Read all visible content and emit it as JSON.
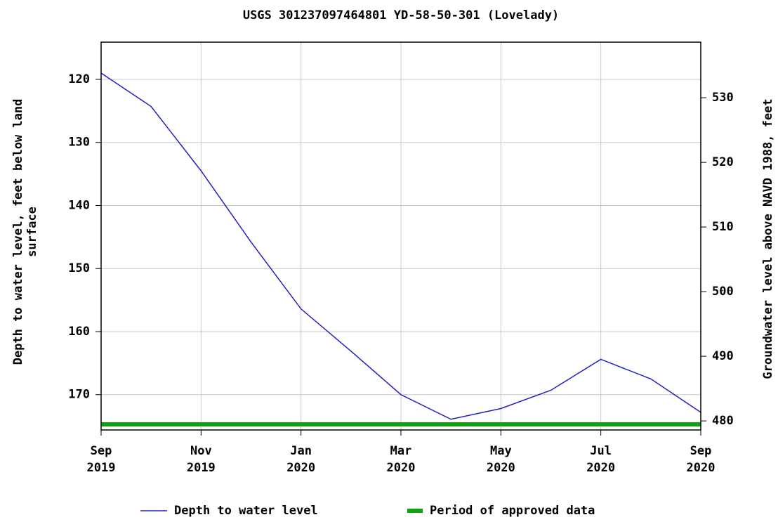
{
  "chart_data": {
    "type": "line",
    "title": "USGS 301237097464801 YD-58-50-301 (Lovelady)",
    "y_label": "Depth to water level, feet below land surface",
    "y2_label": "Groundwater level above NAVD 1988, feet",
    "x": [
      "2019-09",
      "2019-10",
      "2019-11",
      "2019-12",
      "2020-01",
      "2020-02",
      "2020-03",
      "2020-04",
      "2020-05",
      "2020-06",
      "2020-07",
      "2020-08",
      "2020-09"
    ],
    "xlim": [
      "2019-09",
      "2020-09"
    ],
    "xticks": [
      {
        "value": "2019-09",
        "label": "Sep 2019"
      },
      {
        "value": "2019-11",
        "label": "Nov 2019"
      },
      {
        "value": "2020-01",
        "label": "Jan 2020"
      },
      {
        "value": "2020-03",
        "label": "Mar 2020"
      },
      {
        "value": "2020-05",
        "label": "May 2020"
      },
      {
        "value": "2020-07",
        "label": "Jul 2020"
      },
      {
        "value": "2020-09",
        "label": "Sep 2020"
      }
    ],
    "ylim": [
      114.1,
      175.6
    ],
    "y_inverted": true,
    "yticks": [
      120,
      130,
      140,
      150,
      160,
      170
    ],
    "y2lim": [
      478.6,
      538.6
    ],
    "y2ticks": [
      480,
      490,
      500,
      510,
      520,
      530
    ],
    "grid": true,
    "series": [
      {
        "name": "Depth to water level",
        "color": "#2020c0",
        "values": [
          119.0,
          124.3,
          134.5,
          145.8,
          156.4,
          163.1,
          170.0,
          173.9,
          172.2,
          169.3,
          164.4,
          167.5,
          172.8
        ]
      }
    ],
    "periods": [
      {
        "name": "Period of approved data",
        "color": "#10a010",
        "start": "2019-09",
        "end": "2020-09"
      }
    ]
  }
}
